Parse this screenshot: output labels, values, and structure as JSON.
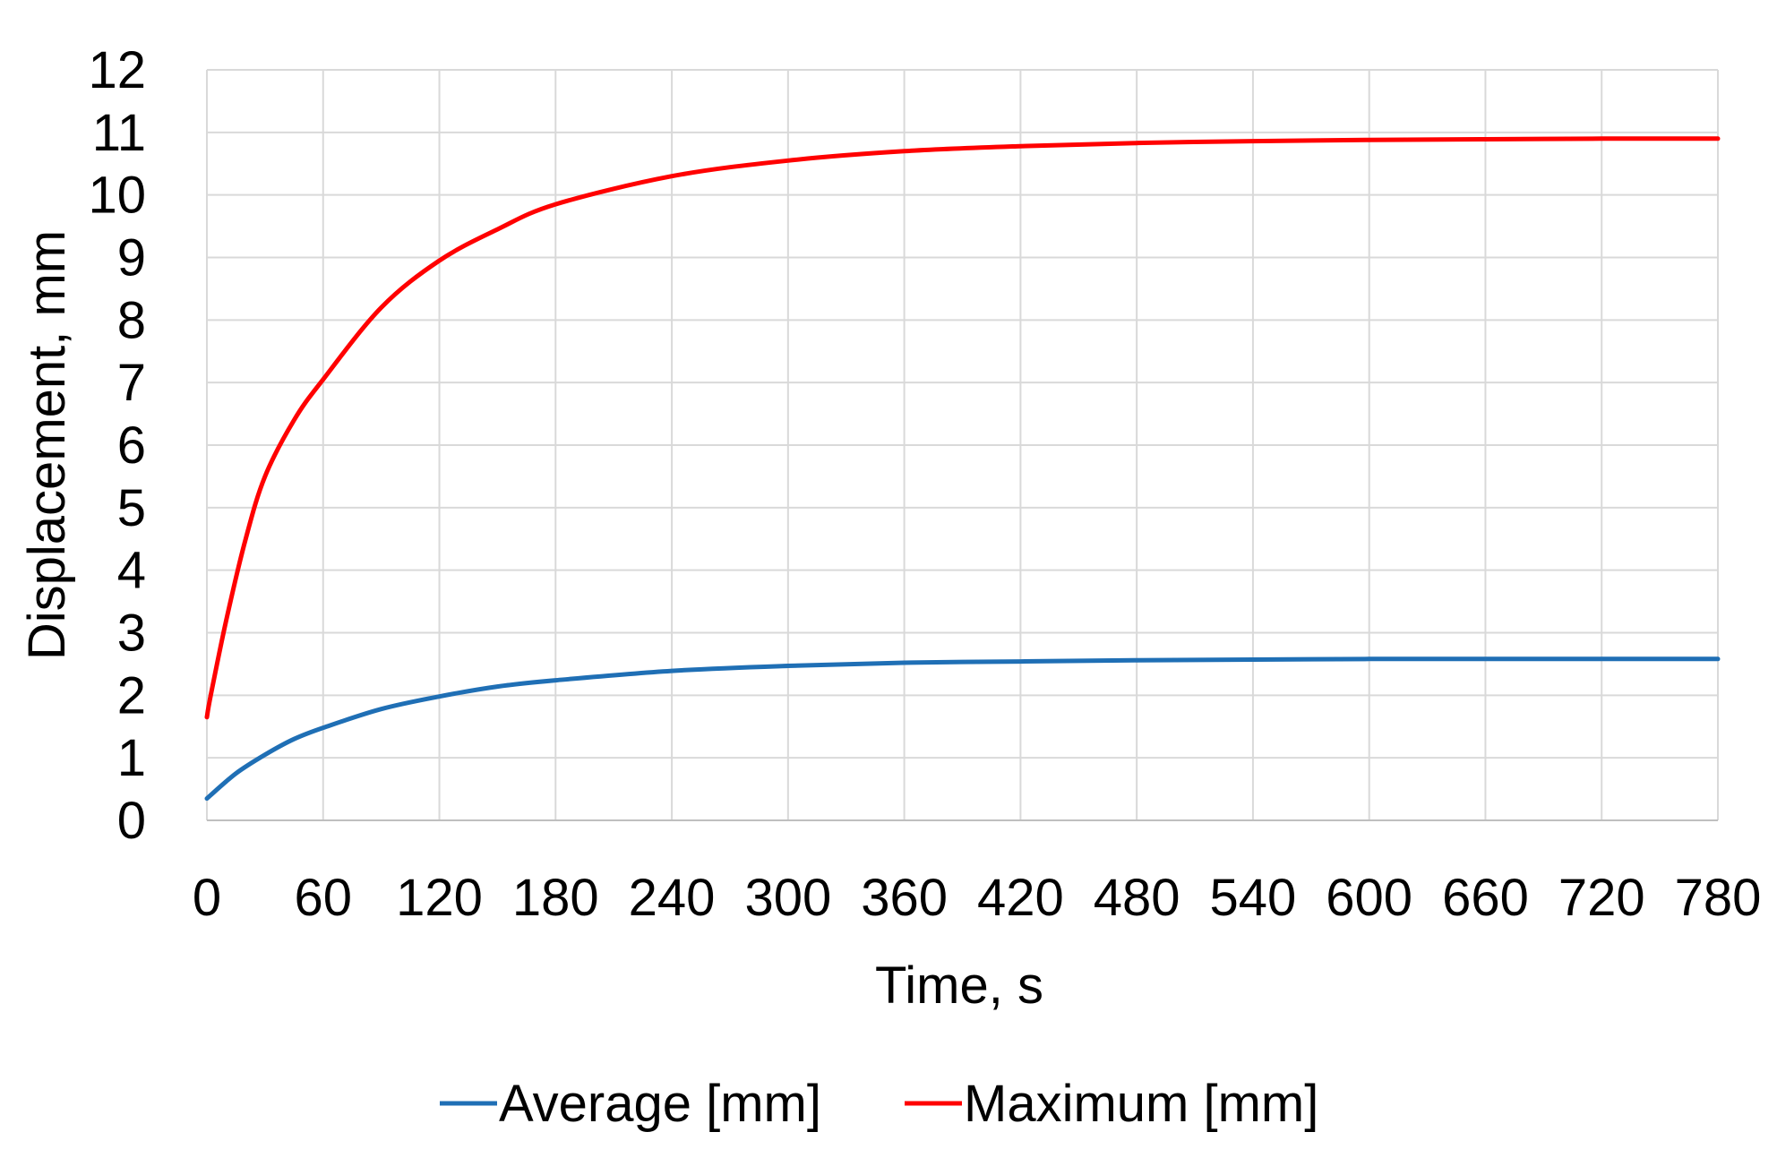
{
  "chart_data": {
    "type": "line",
    "title": "",
    "xlabel": "Time, s",
    "ylabel": "Displacement, mm",
    "xlim": [
      0,
      780
    ],
    "ylim": [
      0,
      12
    ],
    "x_ticks": [
      0,
      60,
      120,
      180,
      240,
      300,
      360,
      420,
      480,
      540,
      600,
      660,
      720,
      780
    ],
    "y_ticks": [
      0,
      1,
      2,
      3,
      4,
      5,
      6,
      7,
      8,
      9,
      10,
      11,
      12
    ],
    "x_tick_labels": [
      "0",
      "60",
      "120",
      "180",
      "240",
      "300",
      "360",
      "420",
      "480",
      "540",
      "600",
      "660",
      "720",
      "780"
    ],
    "y_tick_labels": [
      "0",
      "1",
      "2",
      "3",
      "4",
      "5",
      "6",
      "7",
      "8",
      "9",
      "10",
      "11",
      "12"
    ],
    "grid": true,
    "legend_position": "bottom",
    "series": [
      {
        "name": "Average [mm]",
        "color": "#1f6fb5",
        "x": [
          0,
          15,
          30,
          45,
          60,
          90,
          120,
          150,
          180,
          240,
          300,
          360,
          420,
          480,
          540,
          600,
          660,
          720,
          780
        ],
        "y": [
          0.35,
          0.75,
          1.05,
          1.3,
          1.48,
          1.78,
          1.98,
          2.14,
          2.24,
          2.39,
          2.47,
          2.52,
          2.54,
          2.56,
          2.57,
          2.58,
          2.58,
          2.58,
          2.58
        ]
      },
      {
        "name": "Maximum [mm]",
        "color": "#ff0000",
        "x": [
          0,
          2,
          10,
          20,
          30,
          45,
          60,
          90,
          120,
          150,
          180,
          240,
          300,
          360,
          420,
          480,
          540,
          600,
          660,
          720,
          780
        ],
        "y": [
          1.65,
          2.0,
          3.2,
          4.5,
          5.5,
          6.4,
          7.05,
          8.2,
          8.95,
          9.45,
          9.85,
          10.3,
          10.55,
          10.7,
          10.78,
          10.83,
          10.86,
          10.88,
          10.89,
          10.9,
          10.9
        ]
      }
    ]
  }
}
